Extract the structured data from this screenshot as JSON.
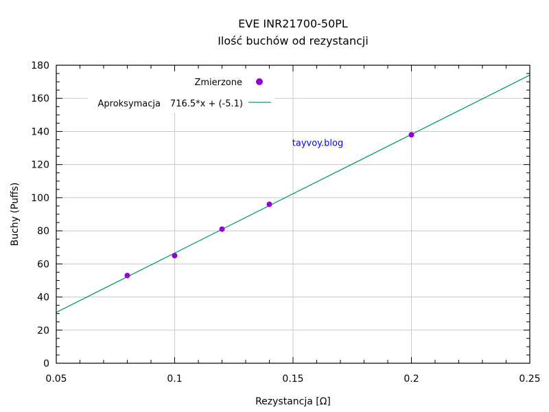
{
  "chart_data": {
    "type": "scatter",
    "title": "EVE INR21700-50PL",
    "subtitle": "Ilość buchów od rezystancji",
    "xlabel": "Rezystancja [Ω]",
    "ylabel": "Buchy (Puffs)",
    "xlim": [
      0.05,
      0.25
    ],
    "ylim": [
      0,
      180
    ],
    "xticks": [
      0.05,
      0.1,
      0.15,
      0.2,
      0.25
    ],
    "xtick_labels": [
      "0.05",
      "0.1",
      "0.15",
      "0.2",
      "0.25"
    ],
    "yticks": [
      0,
      20,
      40,
      60,
      80,
      100,
      120,
      140,
      160,
      180
    ],
    "ytick_labels": [
      "0",
      "20",
      "40",
      "60",
      "80",
      "100",
      "120",
      "140",
      "160",
      "180"
    ],
    "grid": true,
    "legend_position": "top-left",
    "series": [
      {
        "name": "Zmierzone",
        "kind": "points",
        "color": "#9400d3",
        "x": [
          0.08,
          0.1,
          0.12,
          0.14,
          0.2
        ],
        "y": [
          53,
          65,
          81,
          96,
          138
        ]
      },
      {
        "name": "Aproksymacja",
        "formula": "716.5*x + (-5.1)",
        "kind": "line",
        "color": "#009e73",
        "slope": 716.5,
        "intercept": -5.1
      }
    ],
    "annotation": {
      "text": "tayvoy.blog",
      "color": "#0000ff",
      "x": 0.15,
      "y": 133
    }
  }
}
